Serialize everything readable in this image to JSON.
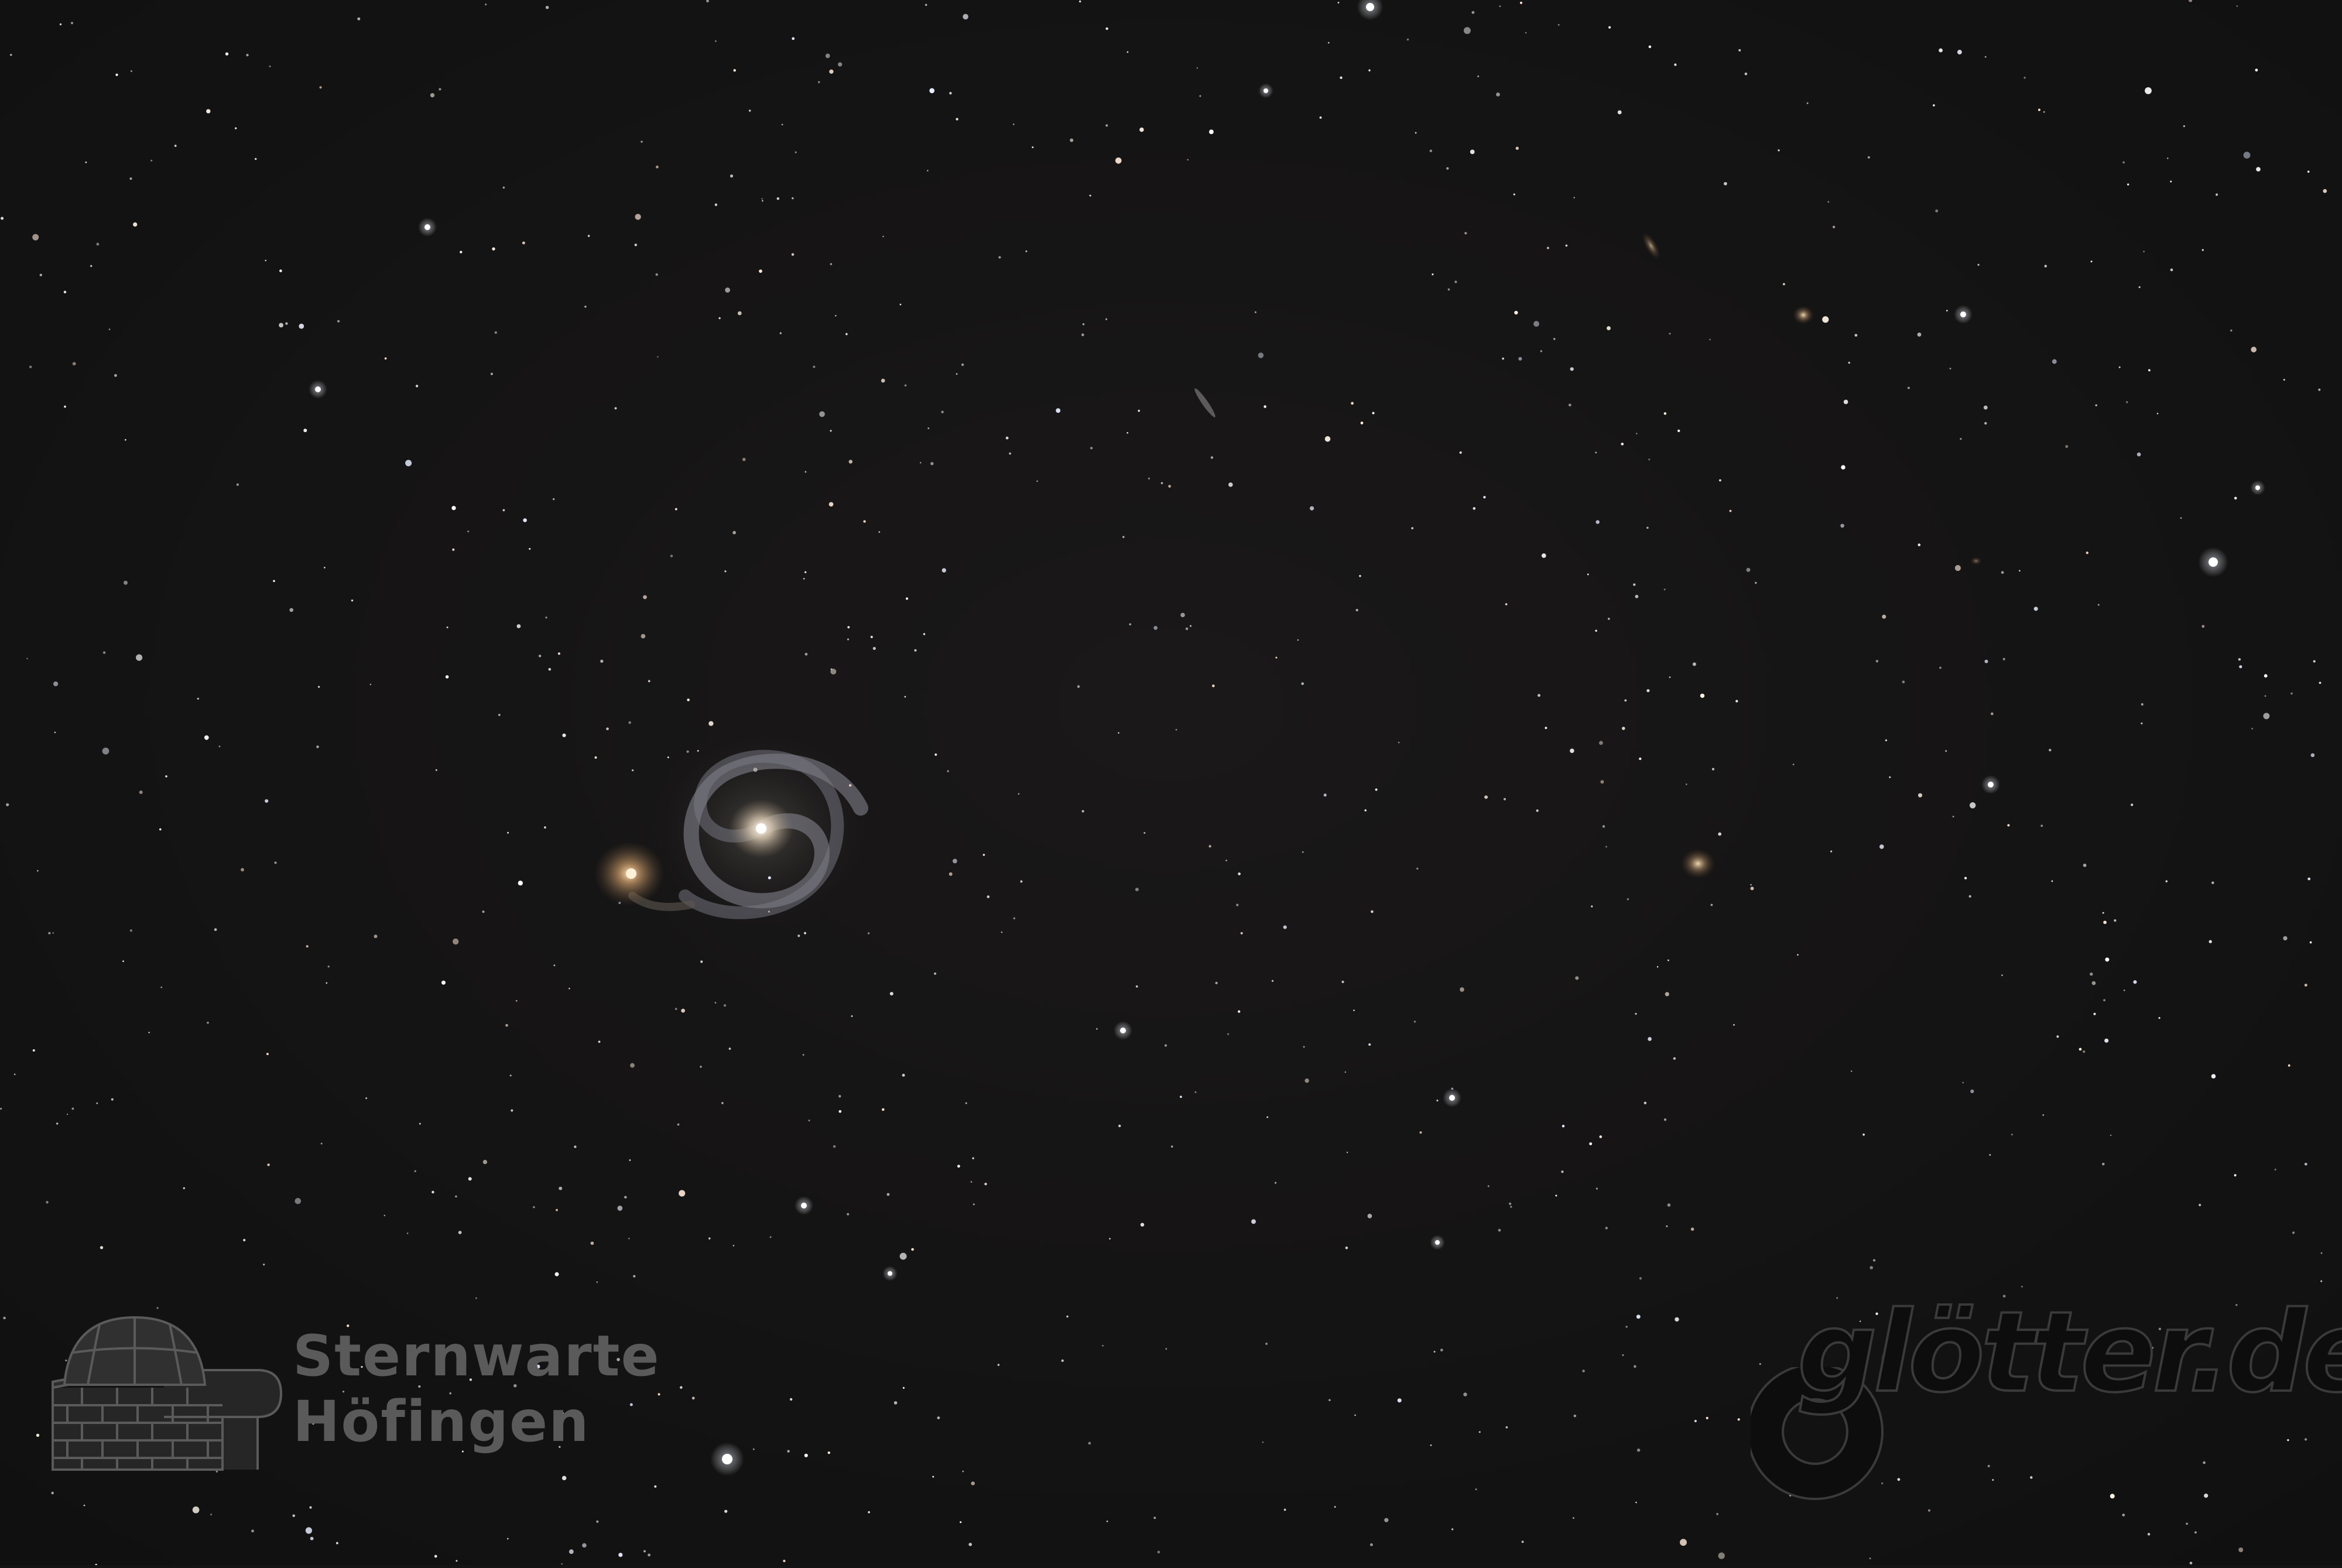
{
  "image": {
    "subject": "Whirlpool Galaxy star field",
    "background_color": "#141414"
  },
  "watermark_left": {
    "line1": "Sternwarte",
    "line2": "Höfingen",
    "color": "#5a5a5a",
    "icon": "observatory-dome-icon"
  },
  "watermark_right": {
    "text": "glötter.de",
    "icon": "ring-logo-icon"
  }
}
